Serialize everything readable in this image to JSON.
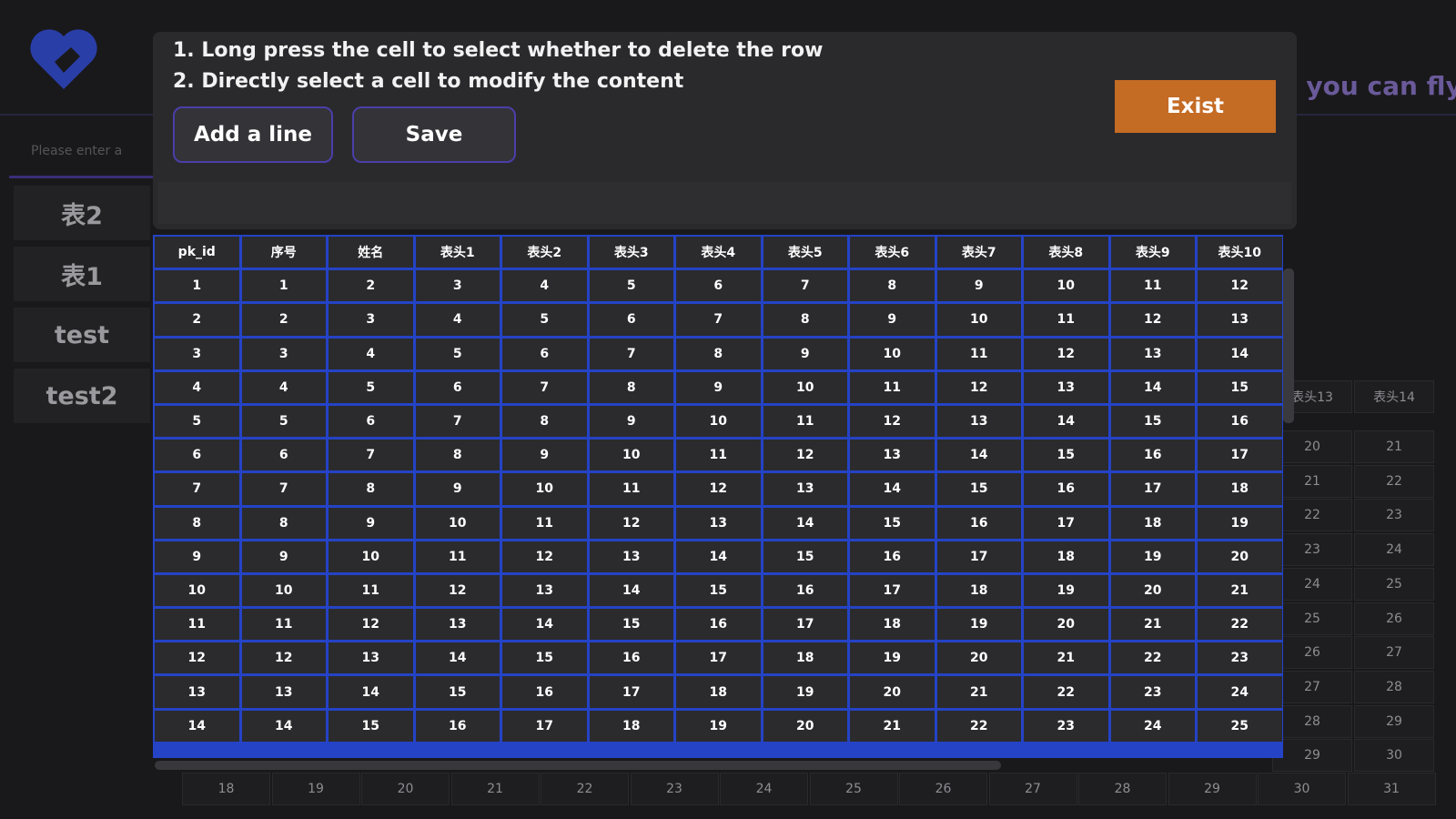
{
  "background": {
    "headline": ", you can fly",
    "search_placeholder": "Please enter a",
    "tables": [
      "表2",
      "表1",
      "test",
      "test2"
    ],
    "grid": {
      "headers": [
        "表头13",
        "表头14"
      ],
      "rows": [
        [
          20,
          21
        ],
        [
          21,
          22
        ],
        [
          22,
          23
        ],
        [
          23,
          24
        ],
        [
          24,
          25
        ],
        [
          25,
          26
        ],
        [
          26,
          27
        ],
        [
          27,
          28
        ],
        [
          28,
          29
        ],
        [
          29,
          30
        ]
      ],
      "footer_row": [
        18,
        19,
        20,
        21,
        22,
        23,
        24,
        25,
        26,
        27,
        28,
        29,
        30,
        31
      ]
    }
  },
  "dialog": {
    "instructions": [
      "1. Long press the cell to select whether to delete the row",
      "2. Directly select a cell to modify the content"
    ],
    "buttons": [
      "Add a line",
      "Save"
    ],
    "exit": "Exist"
  },
  "table": {
    "headers": [
      "pk_id",
      "序号",
      "姓名",
      "表头1",
      "表头2",
      "表头3",
      "表头4",
      "表头5",
      "表头6",
      "表头7",
      "表头8",
      "表头9",
      "表头10"
    ],
    "rows": [
      [
        1,
        1,
        2,
        3,
        4,
        5,
        6,
        7,
        8,
        9,
        10,
        11,
        12
      ],
      [
        2,
        2,
        3,
        4,
        5,
        6,
        7,
        8,
        9,
        10,
        11,
        12,
        13
      ],
      [
        3,
        3,
        4,
        5,
        6,
        7,
        8,
        9,
        10,
        11,
        12,
        13,
        14
      ],
      [
        4,
        4,
        5,
        6,
        7,
        8,
        9,
        10,
        11,
        12,
        13,
        14,
        15
      ],
      [
        5,
        5,
        6,
        7,
        8,
        9,
        10,
        11,
        12,
        13,
        14,
        15,
        16
      ],
      [
        6,
        6,
        7,
        8,
        9,
        10,
        11,
        12,
        13,
        14,
        15,
        16,
        17
      ],
      [
        7,
        7,
        8,
        9,
        10,
        11,
        12,
        13,
        14,
        15,
        16,
        17,
        18
      ],
      [
        8,
        8,
        9,
        10,
        11,
        12,
        13,
        14,
        15,
        16,
        17,
        18,
        19
      ],
      [
        9,
        9,
        10,
        11,
        12,
        13,
        14,
        15,
        16,
        17,
        18,
        19,
        20
      ],
      [
        10,
        10,
        11,
        12,
        13,
        14,
        15,
        16,
        17,
        18,
        19,
        20,
        21
      ],
      [
        11,
        11,
        12,
        13,
        14,
        15,
        16,
        17,
        18,
        19,
        20,
        21,
        22
      ],
      [
        12,
        12,
        13,
        14,
        15,
        16,
        17,
        18,
        19,
        20,
        21,
        22,
        23
      ],
      [
        13,
        13,
        14,
        15,
        16,
        17,
        18,
        19,
        20,
        21,
        22,
        23,
        24
      ],
      [
        14,
        14,
        15,
        16,
        17,
        18,
        19,
        20,
        21,
        22,
        23,
        24,
        25
      ]
    ]
  }
}
